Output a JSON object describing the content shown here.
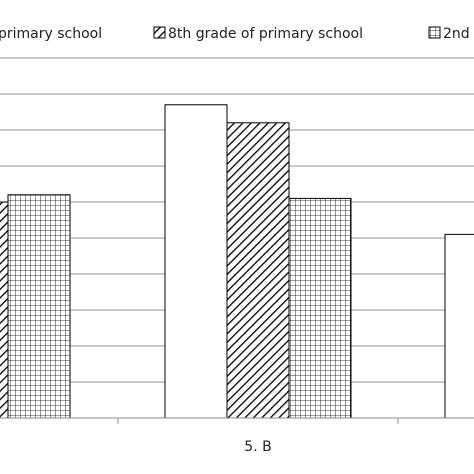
{
  "chart_data": {
    "type": "bar",
    "title": "",
    "xlabel": "",
    "ylabel": "",
    "categories": [
      "",
      "5. B",
      ""
    ],
    "series": [
      {
        "name": "primary school",
        "pattern": "white",
        "values": [
          null,
          8.7,
          5.1
        ]
      },
      {
        "name": "8th grade of primary school",
        "pattern": "diagonal",
        "values": [
          6.0,
          8.2,
          null
        ]
      },
      {
        "name": "2nd",
        "pattern": "grid",
        "values": [
          6.2,
          6.1,
          null
        ]
      }
    ],
    "legend_labels": [
      "primary school",
      "8th grade of primary school",
      "2nd"
    ],
    "ylim": [
      0,
      10
    ],
    "grid": true,
    "legend_position": "top"
  },
  "colors": {
    "stroke": "#000000",
    "grid": "#9a9a9a",
    "fill": "#ffffff"
  }
}
